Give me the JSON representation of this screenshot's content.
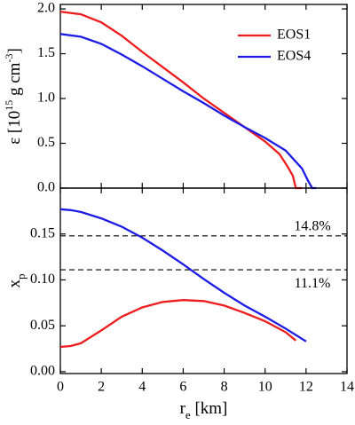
{
  "chart_data": [
    {
      "type": "line",
      "ylabel_parts": [
        {
          "text": "ε [10"
        },
        {
          "text": "15",
          "sup": true
        },
        {
          "text": " g cm"
        },
        {
          "text": "-3",
          "sup": true
        },
        {
          "text": "]"
        }
      ],
      "xlim": [
        0,
        14
      ],
      "xticks": [
        0,
        2,
        4,
        6,
        8,
        10,
        12,
        14
      ],
      "ylim": [
        0,
        2.05
      ],
      "yticks": [
        {
          "value": 0,
          "label": "0.0"
        },
        {
          "value": 0.5,
          "label": "0.5"
        },
        {
          "value": 1,
          "label": "1.0"
        },
        {
          "value": 1.5,
          "label": "1.5"
        },
        {
          "value": 2,
          "label": "2.0"
        }
      ],
      "legend": "upper right",
      "series": [
        {
          "name": "EOS1",
          "color": "#ee1c1c",
          "x": [
            0,
            1,
            2,
            3,
            4,
            5,
            6,
            7,
            8,
            9,
            10,
            10.7,
            11.1,
            11.35,
            11.5,
            11.8
          ],
          "values": [
            1.97,
            1.94,
            1.85,
            1.7,
            1.52,
            1.35,
            1.18,
            1.0,
            0.84,
            0.68,
            0.52,
            0.38,
            0.24,
            0.14,
            0.0,
            0.0
          ]
        },
        {
          "name": "EOS4",
          "color": "#1c1ce6",
          "x": [
            0,
            1,
            2,
            3,
            4,
            5,
            6,
            7,
            8,
            9,
            10,
            11,
            11.8,
            12.1,
            12.3,
            12.5
          ],
          "values": [
            1.72,
            1.69,
            1.61,
            1.49,
            1.36,
            1.22,
            1.08,
            0.95,
            0.81,
            0.68,
            0.56,
            0.42,
            0.22,
            0.08,
            0.0,
            0.0
          ]
        }
      ]
    },
    {
      "type": "line",
      "xlabel_parts": [
        {
          "text": "r"
        },
        {
          "text": "e",
          "sub": true
        },
        {
          "text": " [km]"
        }
      ],
      "ylabel_parts": [
        {
          "text": "x"
        },
        {
          "text": "p",
          "sub": true
        }
      ],
      "xlim": [
        0,
        14
      ],
      "xticks": [
        0,
        2,
        4,
        6,
        8,
        10,
        12,
        14
      ],
      "ylim": [
        -0.002,
        0.2
      ],
      "yticks": [
        {
          "value": 0,
          "label": "0.00"
        },
        {
          "value": 0.05,
          "label": "0.05"
        },
        {
          "value": 0.1,
          "label": "0.10"
        },
        {
          "value": 0.15,
          "label": "0.15"
        }
      ],
      "hlines": [
        {
          "value": 0.148,
          "label": "14.8%"
        },
        {
          "value": 0.111,
          "label": "11.1%"
        }
      ],
      "series": [
        {
          "color": "#ee1c1c",
          "x": [
            0,
            0.5,
            1,
            2,
            3,
            4,
            5,
            6,
            7,
            8,
            9,
            10,
            11,
            11.5
          ],
          "values": [
            0.027,
            0.028,
            0.031,
            0.045,
            0.06,
            0.07,
            0.076,
            0.078,
            0.077,
            0.072,
            0.064,
            0.055,
            0.043,
            0.034
          ]
        },
        {
          "color": "#1c1ce6",
          "x": [
            0,
            0.5,
            1,
            2,
            3,
            4,
            5,
            6,
            7,
            8,
            9,
            10,
            11,
            12
          ],
          "values": [
            0.177,
            0.176,
            0.174,
            0.167,
            0.158,
            0.146,
            0.132,
            0.117,
            0.101,
            0.086,
            0.072,
            0.06,
            0.047,
            0.033
          ]
        }
      ]
    }
  ]
}
